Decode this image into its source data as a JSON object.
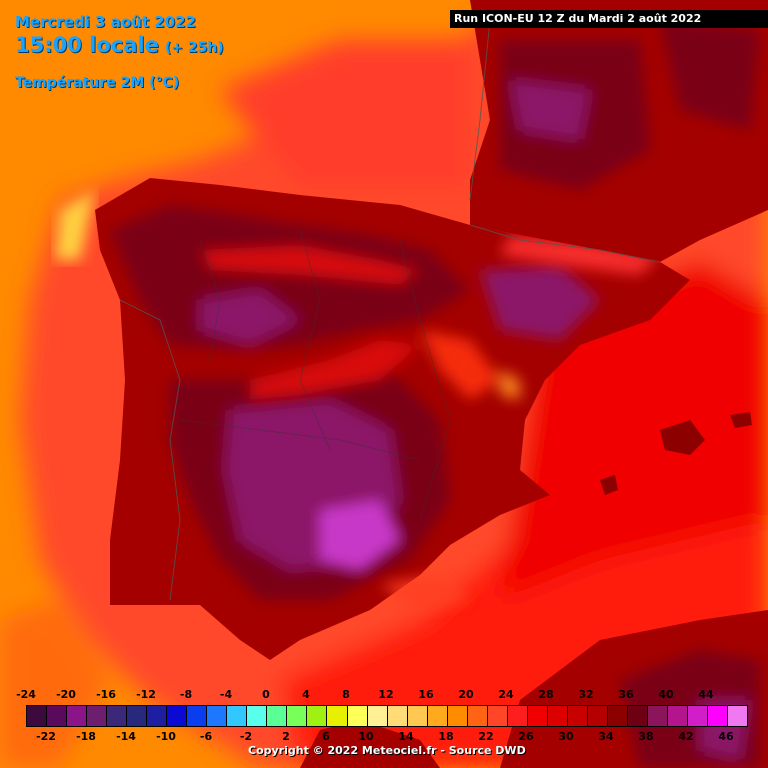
{
  "header": {
    "date": "Mercredi 3 août 2022",
    "time": "15:00 locale",
    "lead": "(+ 25h)",
    "variable": "Température 2M (°C)"
  },
  "run_info": "Run ICON-EU 12 Z du Mardi 2 août 2022",
  "copyright": "Copyright © 2022 Meteociel.fr - Source DWD",
  "legend": {
    "labels_top": [
      "-24",
      "-20",
      "-16",
      "-12",
      "-8",
      "-4",
      "0",
      "4",
      "8",
      "12",
      "16",
      "20",
      "24",
      "28",
      "32",
      "36",
      "40",
      "44"
    ],
    "labels_bottom": [
      "-22",
      "-18",
      "-14",
      "-10",
      "-6",
      "-2",
      "2",
      "6",
      "10",
      "14",
      "18",
      "22",
      "26",
      "30",
      "34",
      "38",
      "42",
      "46"
    ],
    "colors": [
      "#3c0a3c",
      "#5a0a5a",
      "#8a1488",
      "#6e1e6e",
      "#3c2878",
      "#28287d",
      "#1e1ea0",
      "#0a0ad2",
      "#0a3cf0",
      "#1e78ff",
      "#32c8ff",
      "#5affeb",
      "#5aff96",
      "#78ff5a",
      "#a0f014",
      "#e6f000",
      "#ffff5a",
      "#fff096",
      "#ffdc78",
      "#ffc850",
      "#ffaa1e",
      "#ff8c00",
      "#ff6414",
      "#ff4628",
      "#ff1e1e",
      "#f00000",
      "#dc0000",
      "#c80000",
      "#b40000",
      "#8c0000",
      "#6e0014",
      "#8c145a",
      "#b4148c",
      "#d21ec8",
      "#ff00ff",
      "#f078f0"
    ]
  },
  "map": {
    "sea_colors": [
      "#ff8a00",
      "#ff4a2c",
      "#ff2a1c",
      "#f00000"
    ],
    "land_colors": [
      "#a40000",
      "#7a0018",
      "#8c1468",
      "#c838c8"
    ],
    "place_names": [],
    "map_type": "temperature at 2 m over the Iberian Peninsula and southern France"
  }
}
